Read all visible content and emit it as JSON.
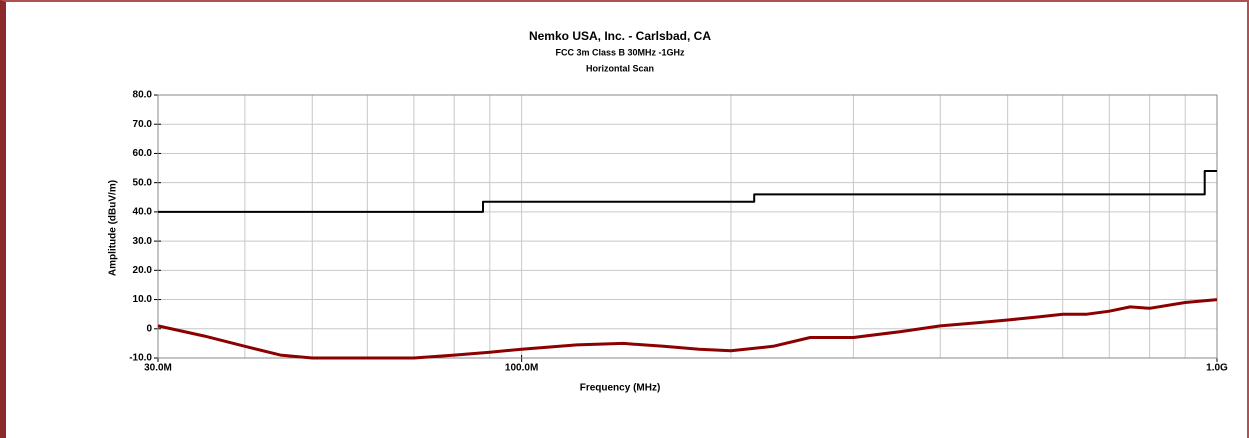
{
  "chart_data": {
    "type": "line",
    "title": "Nemko USA, Inc. - Carlsbad, CA",
    "subtitle": "FCC 3m Class B 30MHz -1GHz",
    "subtitle2": "Horizontal Scan",
    "x_label": "Frequency (MHz)",
    "y_label": "Amplitude (dBuV/m)",
    "xscale": "log",
    "xlim": [
      30,
      1000
    ],
    "xticks": [
      {
        "value": 30,
        "label": "30.0M"
      },
      {
        "value": 100,
        "label": "100.0M"
      },
      {
        "value": 1000,
        "label": "1.0G"
      }
    ],
    "xminor_ticks": [
      40,
      50,
      60,
      70,
      80,
      90,
      200,
      300,
      400,
      500,
      600,
      700,
      800,
      900
    ],
    "ylim": [
      -10,
      80
    ],
    "yticks": [
      {
        "value": -10,
        "label": "-10.0"
      },
      {
        "value": 0,
        "label": "0"
      },
      {
        "value": 10,
        "label": "10.0"
      },
      {
        "value": 20,
        "label": "20.0"
      },
      {
        "value": 30,
        "label": "30.0"
      },
      {
        "value": 40,
        "label": "40.0"
      },
      {
        "value": 50,
        "label": "50.0"
      },
      {
        "value": 60,
        "label": "60.0"
      },
      {
        "value": 70,
        "label": "70.0"
      },
      {
        "value": 80,
        "label": "80.0"
      }
    ],
    "grid": true,
    "series": [
      {
        "color": "#000000",
        "x": [
          30,
          88,
          88,
          216,
          216,
          960,
          960,
          1000
        ],
        "values": [
          40,
          40,
          43.5,
          43.5,
          46,
          46,
          54,
          54
        ]
      },
      {
        "color": "#8b0000",
        "x": [
          30,
          35,
          40,
          45,
          50,
          60,
          70,
          80,
          90,
          100,
          120,
          140,
          160,
          180,
          200,
          230,
          260,
          300,
          350,
          400,
          450,
          500,
          550,
          600,
          650,
          700,
          750,
          800,
          900,
          1000
        ],
        "values": [
          1,
          -2.5,
          -6,
          -9,
          -10,
          -10,
          -10,
          -9,
          -8,
          -7,
          -5.5,
          -5,
          -6,
          -7,
          -7.5,
          -6,
          -3,
          -3,
          -1,
          1,
          2,
          3,
          4,
          5,
          5,
          6,
          7.5,
          7,
          9,
          10
        ]
      }
    ]
  }
}
